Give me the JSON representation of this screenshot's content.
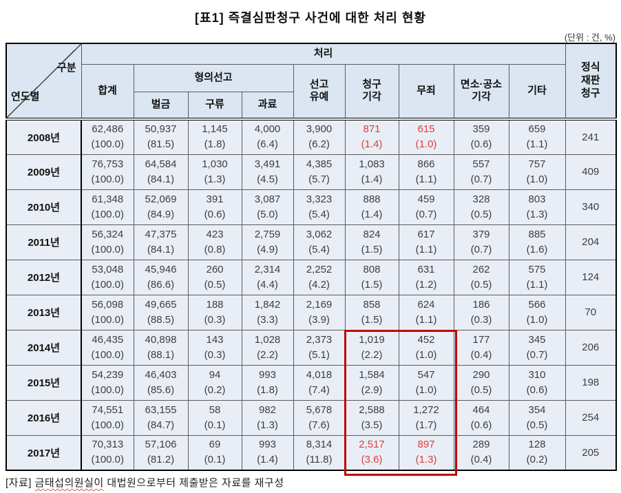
{
  "title": "[표1] 즉결심판청구 사건에 대한 처리 현황",
  "unit_label": "(단위 : 건, %)",
  "colors": {
    "header_bg": "#dce6f2",
    "body_bg": "#e9eef6",
    "red_text": "#e03c3c",
    "highlight_box": "#c00000"
  },
  "table": {
    "corner_top": "구분",
    "corner_bottom": "연도별",
    "group_header": "처리",
    "col_total": "합계",
    "col_sentence_group": "형의선고",
    "col_fine": "벌금",
    "col_detention": "구류",
    "col_minor_fine": "과료",
    "col_suspended": "선고\n유예",
    "col_dismissal": "청구\n기각",
    "col_acquittal": "무죄",
    "col_exemption": "면소·공소\n기각",
    "col_other": "기타",
    "col_formal_trial": "정식\n재판\n청구",
    "rows": [
      {
        "year": "2008년",
        "formal": "241",
        "cells": [
          {
            "n": "62,486",
            "p": "(100.0)"
          },
          {
            "n": "50,937",
            "p": "(81.5)"
          },
          {
            "n": "1,145",
            "p": "(1.8)"
          },
          {
            "n": "4,000",
            "p": "(6.4)"
          },
          {
            "n": "3,900",
            "p": "(6.2)"
          },
          {
            "n": "871",
            "p": "(1.4)",
            "red": true
          },
          {
            "n": "615",
            "p": "(1.0)",
            "red": true
          },
          {
            "n": "359",
            "p": "(0.6)"
          },
          {
            "n": "659",
            "p": "(1.1)"
          }
        ]
      },
      {
        "year": "2009년",
        "formal": "409",
        "cells": [
          {
            "n": "76,753",
            "p": "(100.0)"
          },
          {
            "n": "64,584",
            "p": "(84.1)"
          },
          {
            "n": "1,030",
            "p": "(1.3)"
          },
          {
            "n": "3,491",
            "p": "(4.5)"
          },
          {
            "n": "4,385",
            "p": "(5.7)"
          },
          {
            "n": "1,083",
            "p": "(1.4)"
          },
          {
            "n": "866",
            "p": "(1.1)"
          },
          {
            "n": "557",
            "p": "(0.7)"
          },
          {
            "n": "757",
            "p": "(1.0)"
          }
        ]
      },
      {
        "year": "2010년",
        "formal": "340",
        "cells": [
          {
            "n": "61,348",
            "p": "(100.0)"
          },
          {
            "n": "52,069",
            "p": "(84.9)"
          },
          {
            "n": "391",
            "p": "(0.6)"
          },
          {
            "n": "3,087",
            "p": "(5.0)"
          },
          {
            "n": "3,323",
            "p": "(5.4)"
          },
          {
            "n": "888",
            "p": "(1.4)"
          },
          {
            "n": "459",
            "p": "(0.7)"
          },
          {
            "n": "328",
            "p": "(0.5)"
          },
          {
            "n": "803",
            "p": "(1.3)"
          }
        ]
      },
      {
        "year": "2011년",
        "formal": "204",
        "cells": [
          {
            "n": "56,324",
            "p": "(100.0)"
          },
          {
            "n": "47,375",
            "p": "(84.1)"
          },
          {
            "n": "423",
            "p": "(0.8)"
          },
          {
            "n": "2,759",
            "p": "(4.9)"
          },
          {
            "n": "3,062",
            "p": "(5.4)"
          },
          {
            "n": "824",
            "p": "(1.5)"
          },
          {
            "n": "617",
            "p": "(1.1)"
          },
          {
            "n": "379",
            "p": "(0.7)"
          },
          {
            "n": "885",
            "p": "(1.6)"
          }
        ]
      },
      {
        "year": "2012년",
        "formal": "124",
        "cells": [
          {
            "n": "53,048",
            "p": "(100.0)"
          },
          {
            "n": "45,946",
            "p": "(86.6)"
          },
          {
            "n": "260",
            "p": "(0.5)"
          },
          {
            "n": "2,314",
            "p": "(4.4)"
          },
          {
            "n": "2,252",
            "p": "(4.2)"
          },
          {
            "n": "808",
            "p": "(1.5)"
          },
          {
            "n": "631",
            "p": "(1.2)"
          },
          {
            "n": "262",
            "p": "(0.5)"
          },
          {
            "n": "575",
            "p": "(1.1)"
          }
        ]
      },
      {
        "year": "2013년",
        "formal": "70",
        "cells": [
          {
            "n": "56,098",
            "p": "(100.0)"
          },
          {
            "n": "49,665",
            "p": "(88.5)"
          },
          {
            "n": "188",
            "p": "(0.3)"
          },
          {
            "n": "1,842",
            "p": "(3.3)"
          },
          {
            "n": "2,169",
            "p": "(3.9)"
          },
          {
            "n": "858",
            "p": "(1.5)"
          },
          {
            "n": "624",
            "p": "(1.1)"
          },
          {
            "n": "186",
            "p": "(0.3)"
          },
          {
            "n": "566",
            "p": "(1.0)"
          }
        ]
      },
      {
        "year": "2014년",
        "formal": "206",
        "cells": [
          {
            "n": "46,435",
            "p": "(100.0)"
          },
          {
            "n": "40,898",
            "p": "(88.1)"
          },
          {
            "n": "143",
            "p": "(0.3)"
          },
          {
            "n": "1,028",
            "p": "(2.2)"
          },
          {
            "n": "2,373",
            "p": "(5.1)"
          },
          {
            "n": "1,019",
            "p": "(2.2)"
          },
          {
            "n": "452",
            "p": "(1.0)"
          },
          {
            "n": "177",
            "p": "(0.4)"
          },
          {
            "n": "345",
            "p": "(0.7)"
          }
        ]
      },
      {
        "year": "2015년",
        "formal": "198",
        "cells": [
          {
            "n": "54,239",
            "p": "(100.0)"
          },
          {
            "n": "46,403",
            "p": "(85.6)"
          },
          {
            "n": "94",
            "p": "(0.2)"
          },
          {
            "n": "993",
            "p": "(1.8)"
          },
          {
            "n": "4,018",
            "p": "(7.4)"
          },
          {
            "n": "1,584",
            "p": "(2.9)"
          },
          {
            "n": "547",
            "p": "(1.0)"
          },
          {
            "n": "290",
            "p": "(0.5)"
          },
          {
            "n": "310",
            "p": "(0.6)"
          }
        ]
      },
      {
        "year": "2016년",
        "formal": "254",
        "cells": [
          {
            "n": "74,551",
            "p": "(100.0)"
          },
          {
            "n": "63,155",
            "p": "(84.7)"
          },
          {
            "n": "58",
            "p": "(0.1)"
          },
          {
            "n": "982",
            "p": "(1.3)"
          },
          {
            "n": "5,678",
            "p": "(7.6)"
          },
          {
            "n": "2,588",
            "p": "(3.5)"
          },
          {
            "n": "1,272",
            "p": "(1.7)"
          },
          {
            "n": "464",
            "p": "(0.6)"
          },
          {
            "n": "354",
            "p": "(0.5)"
          }
        ]
      },
      {
        "year": "2017년",
        "formal": "205",
        "cells": [
          {
            "n": "70,313",
            "p": "(100.0)"
          },
          {
            "n": "57,106",
            "p": "(81.2)"
          },
          {
            "n": "69",
            "p": "(0.1)"
          },
          {
            "n": "993",
            "p": "(1.4)"
          },
          {
            "n": "8,314",
            "p": "(11.8)"
          },
          {
            "n": "2,517",
            "p": "(3.6)",
            "red": true
          },
          {
            "n": "897",
            "p": "(1.3)",
            "red": true
          },
          {
            "n": "289",
            "p": "(0.4)"
          },
          {
            "n": "128",
            "p": "(0.2)"
          }
        ]
      }
    ]
  },
  "footnote": {
    "prefix": "[자료]",
    "marked": "금태섭의원실이",
    "rest": "대법원으로부터 제출받은 자료를 재구성"
  }
}
